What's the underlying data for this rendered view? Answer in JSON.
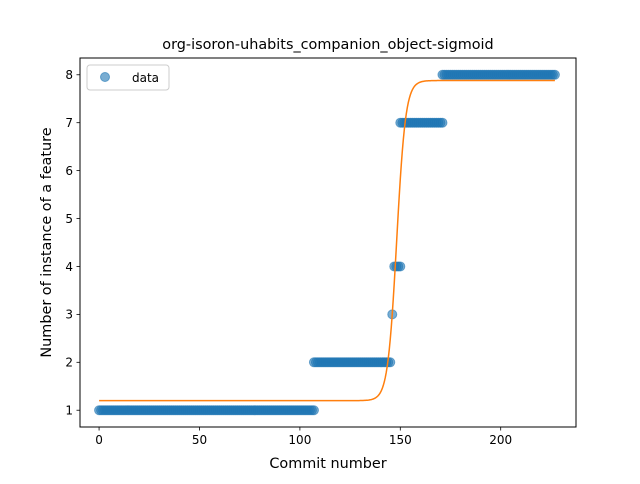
{
  "chart_data": {
    "type": "scatter",
    "title": "org-isoron-uhabits_companion_object-sigmoid",
    "xlabel": "Commit number",
    "ylabel": "Number of instance of a feature",
    "xlim": [
      -9.5,
      237.5
    ],
    "ylim": [
      0.65,
      8.35
    ],
    "x_ticks": [
      0,
      50,
      100,
      150,
      200
    ],
    "y_ticks": [
      1,
      2,
      3,
      4,
      5,
      6,
      7,
      8
    ],
    "grid": false,
    "legend": {
      "placement": "top-left",
      "entries": [
        "data"
      ]
    },
    "colors": {
      "data": "#1f77b4",
      "fit": "#ff7f0e"
    },
    "series": [
      {
        "name": "data",
        "style": "markers",
        "segments": [
          {
            "x_start": 0,
            "x_end": 107,
            "y": 1
          },
          {
            "x_start": 107,
            "x_end": 145,
            "y": 2
          },
          {
            "x_start": 146,
            "x_end": 146,
            "y": 3
          },
          {
            "x_start": 147,
            "x_end": 150,
            "y": 4
          },
          {
            "x_start": 150,
            "x_end": 171,
            "y": 7
          },
          {
            "x_start": 171,
            "x_end": 227,
            "y": 8
          }
        ]
      },
      {
        "style": "line",
        "function": "sigmoid",
        "lower": 1.2,
        "upper": 7.88,
        "midpoint": 148.2,
        "slope": 0.45,
        "x_range": [
          0,
          227
        ]
      }
    ]
  }
}
